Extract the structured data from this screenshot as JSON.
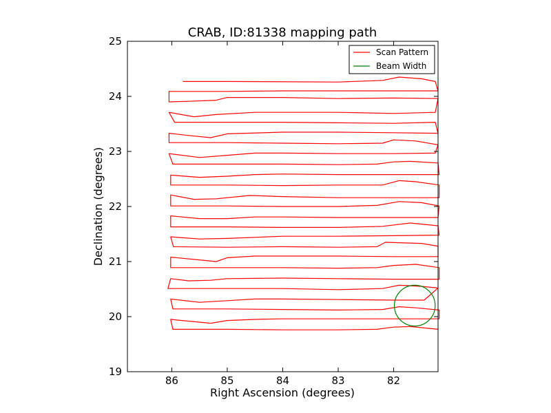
{
  "chart_data": {
    "type": "line",
    "title": "CRAB, ID:81338 mapping path",
    "xlabel": "Right Ascension (degrees)",
    "ylabel": "Declination (degrees)",
    "xlim": [
      86.8,
      81.2
    ],
    "ylim": [
      19,
      25
    ],
    "x_inverted": true,
    "xticks": [
      86,
      85,
      84,
      83,
      82
    ],
    "yticks": [
      19,
      20,
      21,
      22,
      23,
      24,
      25
    ],
    "xtick_labels": [
      "86",
      "85",
      "84",
      "83",
      "82"
    ],
    "ytick_labels": [
      "19",
      "20",
      "21",
      "22",
      "23",
      "24",
      "25"
    ],
    "grid": false,
    "legend": {
      "placement": "top-right",
      "entries": [
        {
          "label": "Scan Pattern",
          "color": "#ff0000"
        },
        {
          "label": "Beam Width",
          "color": "#008000"
        }
      ]
    },
    "series": [
      {
        "name": "Scan Pattern",
        "color": "#ff0000",
        "points": [
          [
            85.8,
            24.27
          ],
          [
            85.0,
            24.27
          ],
          [
            83.0,
            24.26
          ],
          [
            82.2,
            24.29
          ],
          [
            81.9,
            24.35
          ],
          [
            81.5,
            24.32
          ],
          [
            81.25,
            24.27
          ],
          [
            81.2,
            24.1
          ],
          [
            82.0,
            24.1
          ],
          [
            84.0,
            24.1
          ],
          [
            85.0,
            24.09
          ],
          [
            86.05,
            24.09
          ],
          [
            86.05,
            23.9
          ],
          [
            85.7,
            23.91
          ],
          [
            85.2,
            23.93
          ],
          [
            85.0,
            23.98
          ],
          [
            84.0,
            23.98
          ],
          [
            83.0,
            23.96
          ],
          [
            82.0,
            23.97
          ],
          [
            81.2,
            23.96
          ],
          [
            81.25,
            23.71
          ],
          [
            82.0,
            23.69
          ],
          [
            83.0,
            23.71
          ],
          [
            84.0,
            23.71
          ],
          [
            84.5,
            23.71
          ],
          [
            85.2,
            23.67
          ],
          [
            85.6,
            23.63
          ],
          [
            86.05,
            23.71
          ],
          [
            85.95,
            23.53
          ],
          [
            85.0,
            23.53
          ],
          [
            84.0,
            23.53
          ],
          [
            83.0,
            23.52
          ],
          [
            82.0,
            23.51
          ],
          [
            81.25,
            23.53
          ],
          [
            81.2,
            23.33
          ],
          [
            82.0,
            23.34
          ],
          [
            83.0,
            23.35
          ],
          [
            84.0,
            23.35
          ],
          [
            85.0,
            23.32
          ],
          [
            85.3,
            23.25
          ],
          [
            85.7,
            23.29
          ],
          [
            86.05,
            23.33
          ],
          [
            86.05,
            23.16
          ],
          [
            85.0,
            23.16
          ],
          [
            84.0,
            23.15
          ],
          [
            83.0,
            23.14
          ],
          [
            82.2,
            23.15
          ],
          [
            82.0,
            23.21
          ],
          [
            81.6,
            23.19
          ],
          [
            81.2,
            23.12
          ],
          [
            81.25,
            22.97
          ],
          [
            82.0,
            22.96
          ],
          [
            83.0,
            22.96
          ],
          [
            84.0,
            22.97
          ],
          [
            84.5,
            22.97
          ],
          [
            85.0,
            22.93
          ],
          [
            85.5,
            22.89
          ],
          [
            86.05,
            22.96
          ],
          [
            85.98,
            22.77
          ],
          [
            85.0,
            22.77
          ],
          [
            84.0,
            22.77
          ],
          [
            83.0,
            22.76
          ],
          [
            82.3,
            22.77
          ],
          [
            82.0,
            22.81
          ],
          [
            81.7,
            22.82
          ],
          [
            81.2,
            22.79
          ],
          [
            81.18,
            22.58
          ],
          [
            82.0,
            22.58
          ],
          [
            83.0,
            22.58
          ],
          [
            84.0,
            22.59
          ],
          [
            84.5,
            22.58
          ],
          [
            85.0,
            22.55
          ],
          [
            85.5,
            22.53
          ],
          [
            86.02,
            22.57
          ],
          [
            86.02,
            22.39
          ],
          [
            85.0,
            22.39
          ],
          [
            84.0,
            22.38
          ],
          [
            83.0,
            22.39
          ],
          [
            82.2,
            22.39
          ],
          [
            81.9,
            22.47
          ],
          [
            81.6,
            22.45
          ],
          [
            81.18,
            22.39
          ],
          [
            81.18,
            22.16
          ],
          [
            82.0,
            22.16
          ],
          [
            83.0,
            22.16
          ],
          [
            84.0,
            22.18
          ],
          [
            84.6,
            22.2
          ],
          [
            85.2,
            22.14
          ],
          [
            85.6,
            22.13
          ],
          [
            86.02,
            22.21
          ],
          [
            86.02,
            22.01
          ],
          [
            85.0,
            22.01
          ],
          [
            84.0,
            22.0
          ],
          [
            83.0,
            22.0
          ],
          [
            82.3,
            22.02
          ],
          [
            81.9,
            22.09
          ],
          [
            81.5,
            22.07
          ],
          [
            81.18,
            22.01
          ],
          [
            81.2,
            21.8
          ],
          [
            82.0,
            21.8
          ],
          [
            83.0,
            21.8
          ],
          [
            84.0,
            21.81
          ],
          [
            84.5,
            21.81
          ],
          [
            85.0,
            21.78
          ],
          [
            85.5,
            21.78
          ],
          [
            86.02,
            21.83
          ],
          [
            86.02,
            21.63
          ],
          [
            85.0,
            21.63
          ],
          [
            84.0,
            21.62
          ],
          [
            83.0,
            21.62
          ],
          [
            82.2,
            21.64
          ],
          [
            81.7,
            21.7
          ],
          [
            81.2,
            21.65
          ],
          [
            81.18,
            21.48
          ],
          [
            82.0,
            21.47
          ],
          [
            83.0,
            21.46
          ],
          [
            84.0,
            21.46
          ],
          [
            85.0,
            21.42
          ],
          [
            85.5,
            21.41
          ],
          [
            86.02,
            21.45
          ],
          [
            85.97,
            21.27
          ],
          [
            85.0,
            21.26
          ],
          [
            84.0,
            21.27
          ],
          [
            83.0,
            21.26
          ],
          [
            82.3,
            21.27
          ],
          [
            82.15,
            21.35
          ],
          [
            81.5,
            21.33
          ],
          [
            81.2,
            21.28
          ],
          [
            81.2,
            21.09
          ],
          [
            82.0,
            21.09
          ],
          [
            83.0,
            21.1
          ],
          [
            84.0,
            21.1
          ],
          [
            84.5,
            21.1
          ],
          [
            85.0,
            21.07
          ],
          [
            85.2,
            21.0
          ],
          [
            85.5,
            21.03
          ],
          [
            86.02,
            21.08
          ],
          [
            86.02,
            20.89
          ],
          [
            85.0,
            20.89
          ],
          [
            84.0,
            20.89
          ],
          [
            83.0,
            20.88
          ],
          [
            82.3,
            20.89
          ],
          [
            82.0,
            20.93
          ],
          [
            81.6,
            20.95
          ],
          [
            81.18,
            20.89
          ],
          [
            81.18,
            20.68
          ],
          [
            82.0,
            20.68
          ],
          [
            83.0,
            20.69
          ],
          [
            84.0,
            20.7
          ],
          [
            85.0,
            20.69
          ],
          [
            85.3,
            20.66
          ],
          [
            85.7,
            20.65
          ],
          [
            86.02,
            20.69
          ],
          [
            86.07,
            20.51
          ],
          [
            85.0,
            20.51
          ],
          [
            84.0,
            20.51
          ],
          [
            83.0,
            20.49
          ],
          [
            82.2,
            20.51
          ],
          [
            81.9,
            20.57
          ],
          [
            81.5,
            20.55
          ],
          [
            81.2,
            20.52
          ],
          [
            81.45,
            20.3
          ],
          [
            82.0,
            20.3
          ],
          [
            83.0,
            20.31
          ],
          [
            84.0,
            20.32
          ],
          [
            84.5,
            20.32
          ],
          [
            85.0,
            20.29
          ],
          [
            85.5,
            20.26
          ],
          [
            86.02,
            20.32
          ],
          [
            85.98,
            20.14
          ],
          [
            85.0,
            20.14
          ],
          [
            84.0,
            20.13
          ],
          [
            83.0,
            20.12
          ],
          [
            82.2,
            20.13
          ],
          [
            81.9,
            20.18
          ],
          [
            81.6,
            20.16
          ],
          [
            81.18,
            20.12
          ],
          [
            81.18,
            19.96
          ],
          [
            82.0,
            19.96
          ],
          [
            83.0,
            19.96
          ],
          [
            84.0,
            19.96
          ],
          [
            84.5,
            19.95
          ],
          [
            85.0,
            19.93
          ],
          [
            85.3,
            19.88
          ],
          [
            86.02,
            19.95
          ],
          [
            85.98,
            19.77
          ],
          [
            85.0,
            19.77
          ],
          [
            84.0,
            19.76
          ],
          [
            83.0,
            19.76
          ],
          [
            82.3,
            19.77
          ],
          [
            82.0,
            19.81
          ],
          [
            81.7,
            19.82
          ],
          [
            81.2,
            19.77
          ]
        ]
      },
      {
        "name": "Beam Width",
        "type": "circle",
        "color": "#008000",
        "center": [
          81.62,
          20.2
        ],
        "radius_deg": 0.37
      }
    ]
  }
}
